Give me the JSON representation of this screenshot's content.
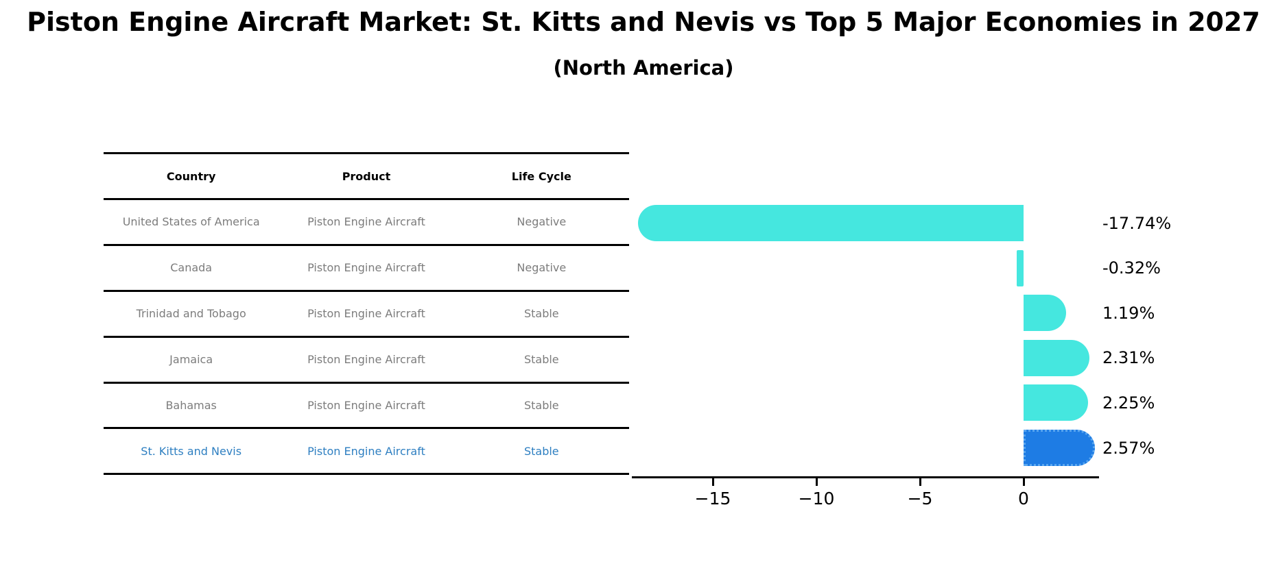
{
  "page": {
    "title": "Piston Engine Aircraft Market: St. Kitts and Nevis vs Top 5 Major Economies in 2027",
    "subtitle": "(North America)"
  },
  "table": {
    "headers": [
      "Country",
      "Product",
      "Life Cycle"
    ],
    "rows": [
      {
        "country": "United States of America",
        "product": "Piston Engine Aircraft",
        "life_cycle": "Negative",
        "highlighted": false
      },
      {
        "country": "Canada",
        "product": "Piston Engine Aircraft",
        "life_cycle": "Negative",
        "highlighted": false
      },
      {
        "country": "Trinidad and Tobago",
        "product": "Piston Engine Aircraft",
        "life_cycle": "Stable",
        "highlighted": false
      },
      {
        "country": "Jamaica",
        "product": "Piston Engine Aircraft",
        "life_cycle": "Stable",
        "highlighted": false
      },
      {
        "country": "Bahamas",
        "product": "Piston Engine Aircraft",
        "life_cycle": "Stable",
        "highlighted": false
      },
      {
        "country": "St. Kitts and Nevis",
        "product": "Piston Engine Aircraft",
        "life_cycle": "Stable",
        "highlighted": true
      }
    ]
  },
  "chart_data": {
    "type": "bar",
    "orientation": "horizontal",
    "title": "Piston Engine Aircraft Market: St. Kitts and Nevis vs Top 5 Major Economies in 2027",
    "subtitle": "(North America)",
    "categories": [
      "United States of America",
      "Canada",
      "Trinidad and Tobago",
      "Jamaica",
      "Bahamas",
      "St. Kitts and Nevis"
    ],
    "values": [
      -17.74,
      -0.32,
      1.19,
      2.31,
      2.25,
      2.57
    ],
    "value_labels": [
      "-17.74%",
      "-0.32%",
      "1.19%",
      "2.31%",
      "2.25%",
      "2.57%"
    ],
    "x_tick_values": [
      -15,
      -10,
      -5,
      0
    ],
    "x_tick_labels": [
      "−15",
      "−10",
      "−5",
      "0"
    ],
    "xlim": [
      -18.9,
      3.65
    ],
    "grid": false,
    "legend": "none",
    "highlight_index": 5,
    "bar_color": "#45E7DF",
    "highlight_bar_color": "#1E7CE4",
    "highlight_border_color": "#5AA7F0",
    "highlight_text_color": "#2E7FC1"
  }
}
